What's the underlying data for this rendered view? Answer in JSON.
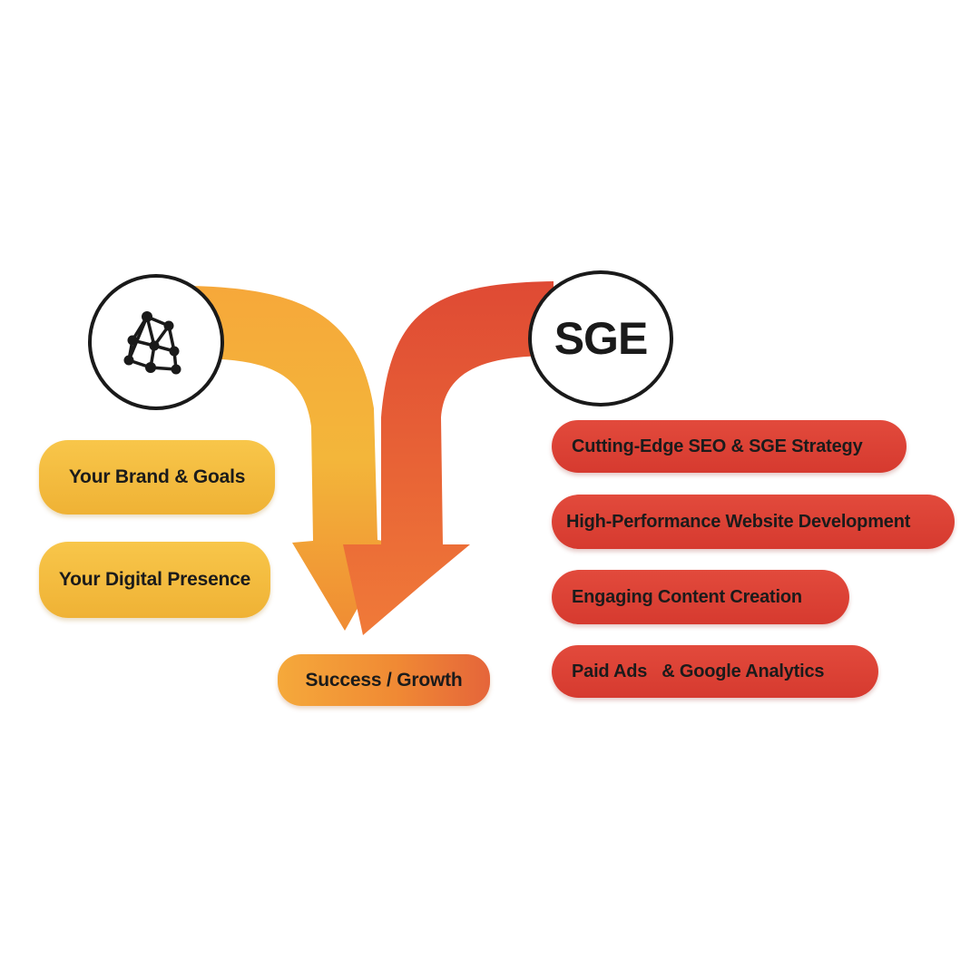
{
  "left_node": {
    "icon": "network-graph-icon",
    "items": [
      "Your Brand & Goals",
      "Your Digital Presence"
    ]
  },
  "right_node": {
    "label": "SGE",
    "items": [
      "Cutting-Edge SEO & SGE Strategy",
      "High-Performance Website Development",
      "Engaging Content Creation",
      "Paid Ads   & Google Analytics"
    ]
  },
  "result": {
    "label": "Success / Growth"
  },
  "colors": {
    "yellow": "#f4b93c",
    "orange": "#f08a34",
    "red": "#d9402f",
    "outline": "#1a1a1a"
  }
}
